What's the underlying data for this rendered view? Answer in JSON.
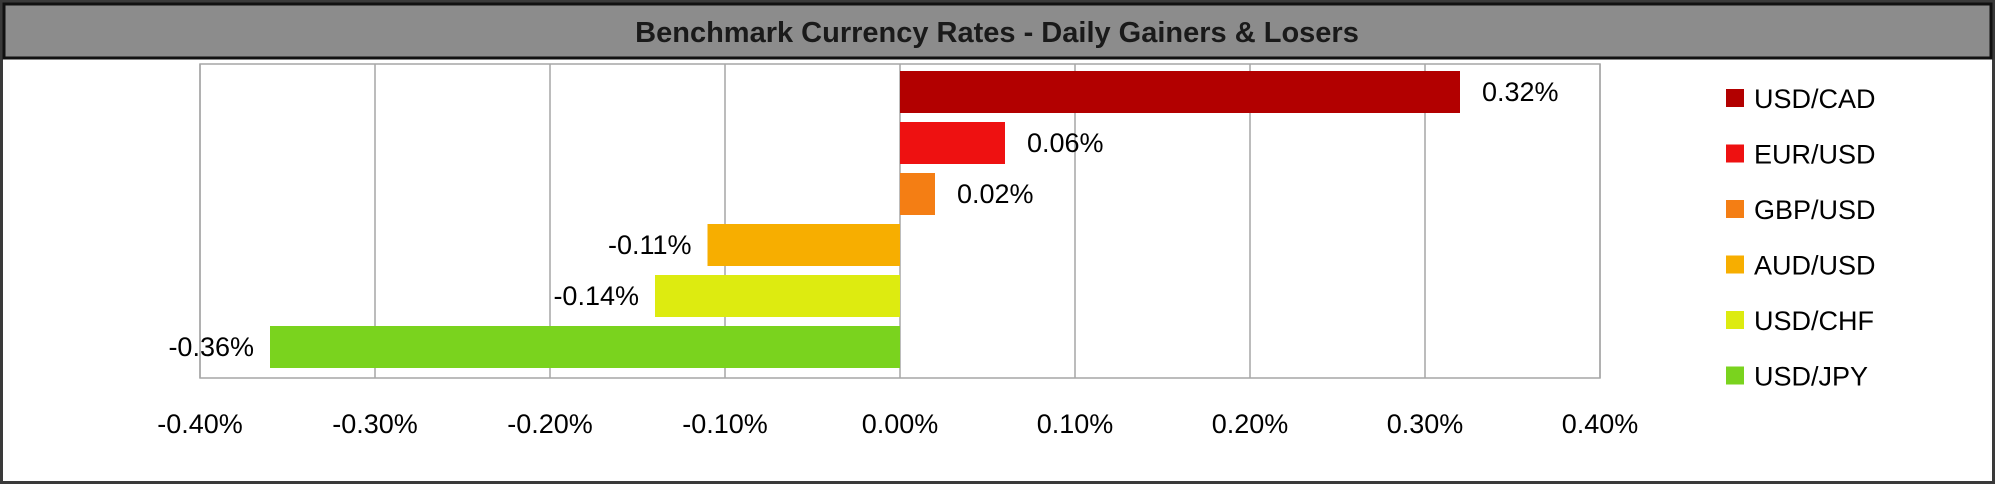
{
  "chart_data": {
    "type": "bar",
    "orientation": "horizontal",
    "title": "Benchmark Currency Rates - Daily Gainers & Losers",
    "xlabel": "",
    "ylabel": "",
    "xlim": [
      -0.4,
      0.4
    ],
    "x_ticks": [
      "-0.40%",
      "-0.30%",
      "-0.20%",
      "-0.10%",
      "0.00%",
      "0.10%",
      "0.20%",
      "0.30%",
      "0.40%"
    ],
    "grid": "vertical",
    "legend_position": "right",
    "series": [
      {
        "name": "USD/CAD",
        "value": 0.32,
        "label": "0.32%",
        "color": "#B20000"
      },
      {
        "name": "EUR/USD",
        "value": 0.06,
        "label": "0.06%",
        "color": "#EE1111"
      },
      {
        "name": "GBP/USD",
        "value": 0.02,
        "label": "0.02%",
        "color": "#F47E14"
      },
      {
        "name": "AUD/USD",
        "value": -0.11,
        "label": "-0.11%",
        "color": "#F7AE00"
      },
      {
        "name": "USD/CHF",
        "value": -0.14,
        "label": "-0.14%",
        "color": "#DDEB10"
      },
      {
        "name": "USD/JPY",
        "value": -0.36,
        "label": "-0.36%",
        "color": "#7AD31E"
      }
    ]
  },
  "colors": {
    "title_bar": "#8C8C8C",
    "title_text": "#1A1A1A",
    "gridline": "#A6A6A6",
    "frame": "#3A3A3A"
  }
}
